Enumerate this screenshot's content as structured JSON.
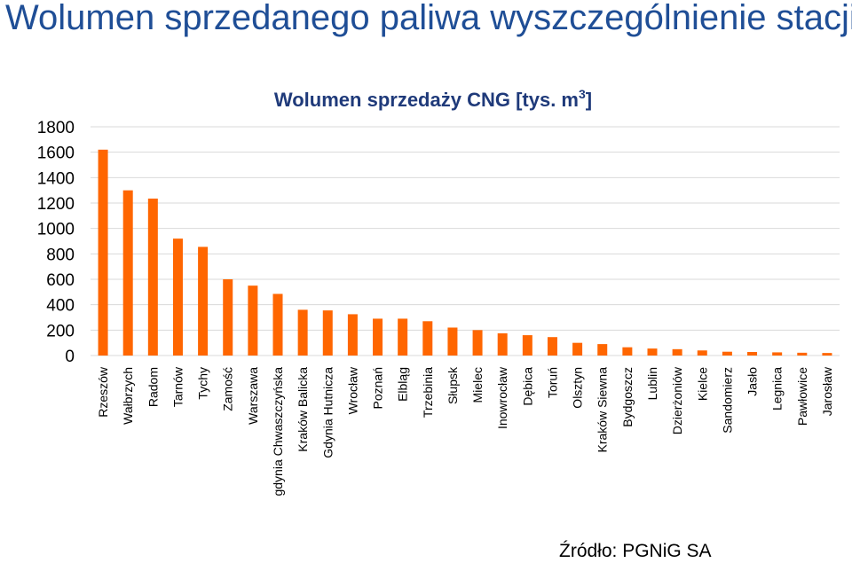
{
  "slide": {
    "title": "Wolumen sprzedanego paliwa wyszczególnienie stacji",
    "source": "Źródło: PGNiG SA"
  },
  "colors": {
    "title": "#1f4e96",
    "chart_title": "#1f3a7a",
    "bar": "#ff6600",
    "grid": "#d9d9d9",
    "axis_text": "#000000"
  },
  "chart_data": {
    "type": "bar",
    "title": "Wolumen sprzedaży CNG [tys. m",
    "title_superscript": "3",
    "title_suffix": "]",
    "xlabel": "",
    "ylabel": "",
    "ylim": [
      0,
      1800
    ],
    "yticks": [
      0,
      200,
      400,
      600,
      800,
      1000,
      1200,
      1400,
      1600,
      1800
    ],
    "grid": true,
    "categories": [
      "Rzeszów",
      "Wałbrzych",
      "Radom",
      "Tarnów",
      "Tychy",
      "Zamość",
      "Warszawa",
      "gdynia Chwaszczyńska",
      "Kraków Balicka",
      "Gdynia Hutnicza",
      "Wrocław",
      "Poznań",
      "Elbląg",
      "Trzebinia",
      "Słupsk",
      "Mielec",
      "Inowrocław",
      "Dębica",
      "Toruń",
      "Olsztyn",
      "Kraków Siewna",
      "Bydgoszcz",
      "Lublin",
      "Dzierżoniów",
      "Kielce",
      "Sandomierz",
      "Jasło",
      "Legnica",
      "Pawłowice",
      "Jarosław"
    ],
    "values": [
      1620,
      1300,
      1235,
      920,
      855,
      600,
      550,
      485,
      360,
      355,
      325,
      290,
      290,
      270,
      220,
      200,
      175,
      160,
      145,
      100,
      90,
      65,
      55,
      50,
      40,
      30,
      28,
      25,
      22,
      20
    ]
  }
}
